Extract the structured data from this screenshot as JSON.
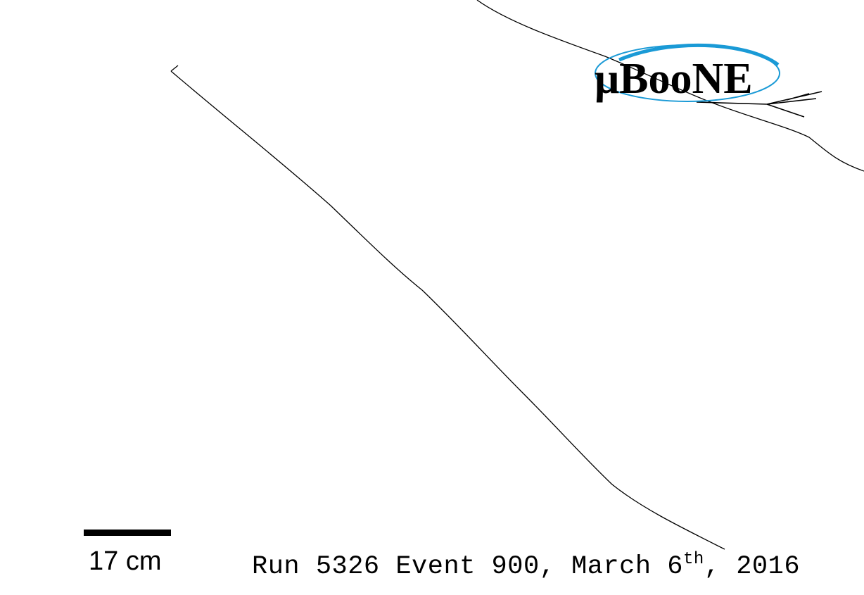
{
  "logo": {
    "text": "μBooNE",
    "ellipse_color": "#1a9ad6"
  },
  "scale": {
    "label": "17 cm"
  },
  "run_info": {
    "prefix": "Run 5326 Event 900, March 6",
    "superscript": "th",
    "suffix": ", 2016"
  },
  "tracks": {
    "color": "#000000"
  }
}
